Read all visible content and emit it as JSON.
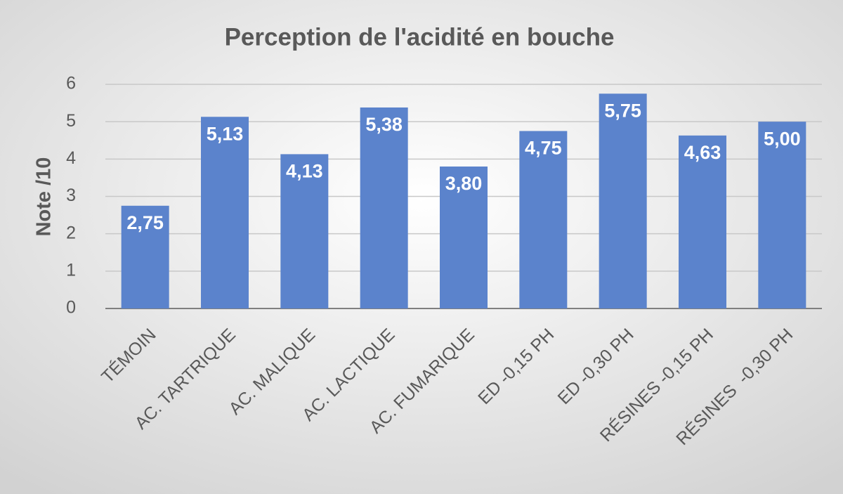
{
  "chart_data": {
    "type": "bar",
    "title": "Perception de l'acidité en bouche",
    "y_label": "Note /10",
    "categories": [
      "TÉMOIN",
      "AC. TARTRIQUE",
      "AC. MALIQUE",
      "AC. LACTIQUE",
      "AC. FUMARIQUE",
      "ED -0,15 PH",
      "ED -0,30 PH",
      "RÉSINES -0,15 PH",
      "RÉSINES  -0,30 PH"
    ],
    "values": [
      2.75,
      5.13,
      4.13,
      5.38,
      3.8,
      4.75,
      5.75,
      4.63,
      5.0
    ],
    "value_labels": [
      "2,75",
      "5,13",
      "4,13",
      "5,38",
      "3,80",
      "4,75",
      "5,75",
      "4,63",
      "5,00"
    ],
    "color": "#5b83cc",
    "ylim": [
      0,
      6
    ],
    "yticks": [
      0,
      1,
      2,
      3,
      4,
      5,
      6
    ],
    "grid": true
  }
}
